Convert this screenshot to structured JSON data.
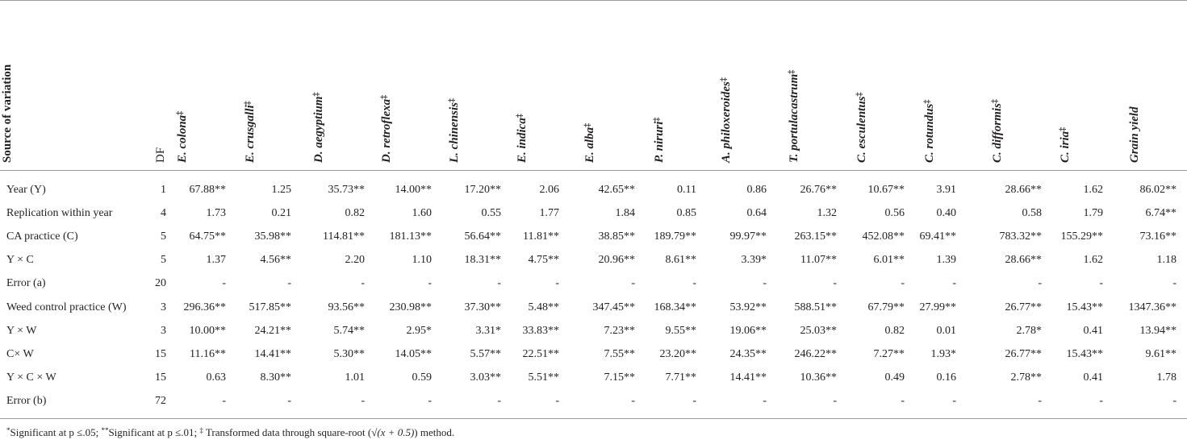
{
  "table": {
    "header": {
      "source": "Source of variation",
      "df": "DF",
      "mark": "‡",
      "species": [
        "E. colona",
        "E. crusgalli",
        "D. aegyptium",
        "D. retroflexa",
        "L. chinensis",
        "E. indica",
        "E. alba",
        "P. niruri",
        "A. philoxeroides",
        "T. portulacastrum",
        "C. esculentus",
        "C. rotundus",
        "C. difformis",
        "C. iria"
      ],
      "yield": "Grain yield"
    },
    "rows": [
      {
        "label": "Year (Y)",
        "df": "1",
        "values": [
          "67.88**",
          "1.25",
          "35.73**",
          "14.00**",
          "17.20**",
          "2.06",
          "42.65**",
          "0.11",
          "0.86",
          "26.76**",
          "10.67**",
          "3.91",
          "28.66**",
          "1.62",
          "86.02**"
        ]
      },
      {
        "label": "Replication within year",
        "df": "4",
        "values": [
          "1.73",
          "0.21",
          "0.82",
          "1.60",
          "0.55",
          "1.77",
          "1.84",
          "0.85",
          "0.64",
          "1.32",
          "0.56",
          "0.40",
          "0.58",
          "1.79",
          "6.74**"
        ]
      },
      {
        "label": "CA practice (C)",
        "df": "5",
        "values": [
          "64.75**",
          "35.98**",
          "114.81**",
          "181.13**",
          "56.64**",
          "11.81**",
          "38.85**",
          "189.79**",
          "99.97**",
          "263.15**",
          "452.08**",
          "69.41**",
          "783.32**",
          "155.29**",
          "73.16**"
        ]
      },
      {
        "label": "Y × C",
        "df": "5",
        "values": [
          "1.37",
          "4.56**",
          "2.20",
          "1.10",
          "18.31**",
          "4.75**",
          "20.96**",
          "8.61**",
          "3.39*",
          "11.07**",
          "6.01**",
          "1.39",
          "28.66**",
          "1.62",
          "1.18"
        ]
      },
      {
        "label": "Error (a)",
        "df": "20",
        "values": [
          "-",
          "-",
          "-",
          "-",
          "-",
          "-",
          "-",
          "-",
          "-",
          "-",
          "-",
          "-",
          "-",
          "-",
          "-"
        ]
      },
      {
        "label": "Weed control practice (W)",
        "df": "3",
        "values": [
          "296.36**",
          "517.85**",
          "93.56**",
          "230.98**",
          "37.30**",
          "5.48**",
          "347.45**",
          "168.34**",
          "53.92**",
          "588.51**",
          "67.79**",
          "27.99**",
          "26.77**",
          "15.43**",
          "1347.36**"
        ]
      },
      {
        "label": "Y × W",
        "df": "3",
        "values": [
          "10.00**",
          "24.21**",
          "5.74**",
          "2.95*",
          "3.31*",
          "33.83**",
          "7.23**",
          "9.55**",
          "19.06**",
          "25.03**",
          "0.82",
          "0.01",
          "2.78*",
          "0.41",
          "13.94**"
        ]
      },
      {
        "label": "C× W",
        "df": "15",
        "values": [
          "11.16**",
          "14.41**",
          "5.30**",
          "14.05**",
          "5.57**",
          "22.51**",
          "7.55**",
          "23.20**",
          "24.35**",
          "246.22**",
          "7.27**",
          "1.93*",
          "26.77**",
          "15.43**",
          "9.61**"
        ]
      },
      {
        "label": "Y × C × W",
        "df": "15",
        "values": [
          "0.63",
          "8.30**",
          "1.01",
          "0.59",
          "3.03**",
          "5.51**",
          "7.15**",
          "7.71**",
          "14.41**",
          "10.36**",
          "0.49",
          "0.16",
          "2.78**",
          "0.41",
          "1.78"
        ]
      },
      {
        "label": "Error (b)",
        "df": "72",
        "values": [
          "-",
          "-",
          "-",
          "-",
          "-",
          "-",
          "-",
          "-",
          "-",
          "-",
          "-",
          "-",
          "-",
          "-",
          "-"
        ]
      }
    ],
    "footnote": {
      "star1": "*",
      "text1": "Significant at p ≤.05; ",
      "star2": "**",
      "text2": "Significant at p ≤.01; ",
      "dagger": "‡",
      "text3": " Transformed data through square-root (",
      "formula": "√(x + 0.5)",
      "text4": ") method."
    }
  }
}
